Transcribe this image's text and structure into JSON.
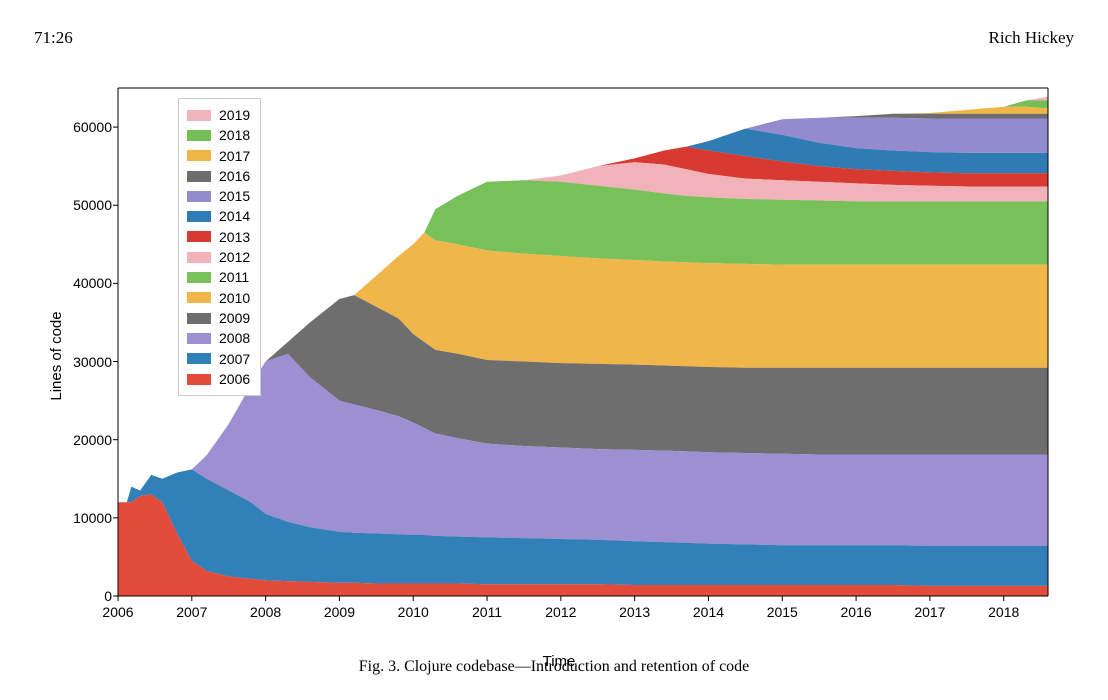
{
  "page_number": "71:26",
  "author": "Rich Hickey",
  "caption": "Fig. 3.  Clojure codebase—Introduction and retention of code",
  "chart": {
    "type": "area-stacked",
    "xlabel": "Time",
    "ylabel": "Lines of code",
    "xlim": [
      2006,
      2018.6
    ],
    "ylim": [
      0,
      65000
    ],
    "yticks": [
      0,
      10000,
      20000,
      30000,
      40000,
      50000,
      60000
    ],
    "xticks": [
      2006,
      2007,
      2008,
      2009,
      2010,
      2011,
      2012,
      2013,
      2014,
      2015,
      2016,
      2017,
      2018
    ],
    "label_fontsize": 15,
    "tick_fontsize": 14,
    "legend_fontsize": 14,
    "background_color": "#ffffff",
    "axis_color": "#000000",
    "font_family_axes": "Helvetica, Arial, sans-serif",
    "legend_order": [
      "2019",
      "2018",
      "2017",
      "2016",
      "2015",
      "2014",
      "2013",
      "2012",
      "2011",
      "2010",
      "2009",
      "2008",
      "2007",
      "2006"
    ],
    "series_colors": {
      "2006": "#e34b3a",
      "2007": "#3180b7",
      "2008": "#9c8fd2",
      "2009": "#6e6e6e",
      "2010": "#f1b64a",
      "2011": "#77c05a",
      "2012": "#f2b2ba",
      "2013": "#d63a31",
      "2014": "#2f7cb5",
      "2015": "#948bcf",
      "2016": "#6d6d6d",
      "2017": "#f0b547",
      "2018": "#74bf55",
      "2019": "#f1b3bc"
    },
    "time_points": [
      2006,
      2006.12,
      2006.18,
      2006.3,
      2006.45,
      2006.6,
      2006.8,
      2007,
      2007.2,
      2007.5,
      2007.8,
      2008,
      2008.3,
      2008.6,
      2009,
      2009.2,
      2009.5,
      2009.8,
      2010,
      2010.15,
      2010.3,
      2010.6,
      2011,
      2011.5,
      2012,
      2012.5,
      2013,
      2013.4,
      2013.7,
      2014,
      2014.5,
      2015,
      2015.5,
      2016,
      2016.5,
      2017,
      2017.5,
      2018,
      2018.3,
      2018.6
    ],
    "cumulative_top": {
      "2006": [
        12000,
        12000,
        12000,
        12800,
        13000,
        12000,
        8000,
        4500,
        3200,
        2500,
        2200,
        2000,
        1900,
        1800,
        1700,
        1700,
        1600,
        1600,
        1600,
        1600,
        1600,
        1600,
        1500,
        1500,
        1500,
        1500,
        1400,
        1400,
        1400,
        1400,
        1400,
        1400,
        1400,
        1400,
        1400,
        1300,
        1300,
        1300,
        1300,
        1300
      ],
      "2007": [
        12000,
        12000,
        14000,
        13500,
        15500,
        15000,
        15800,
        16200,
        15000,
        13500,
        12000,
        10500,
        9500,
        8800,
        8200,
        8100,
        8000,
        7900,
        7800,
        7800,
        7700,
        7600,
        7500,
        7400,
        7300,
        7200,
        7000,
        6900,
        6800,
        6700,
        6600,
        6500,
        6500,
        6500,
        6500,
        6400,
        6400,
        6400,
        6400,
        6400
      ],
      "2008": [
        12000,
        12000,
        14000,
        13500,
        15500,
        15000,
        15800,
        16200,
        18000,
        22000,
        27000,
        30000,
        31000,
        28000,
        25000,
        24500,
        23800,
        23000,
        22200,
        21500,
        20800,
        20200,
        19500,
        19200,
        19000,
        18800,
        18700,
        18600,
        18500,
        18400,
        18300,
        18200,
        18100,
        18100,
        18100,
        18100,
        18100,
        18100,
        18100,
        18100
      ],
      "2009": [
        12000,
        12000,
        14000,
        13500,
        15500,
        15000,
        15800,
        16200,
        18000,
        22000,
        27000,
        30000,
        32500,
        35000,
        38000,
        38500,
        37000,
        35500,
        33500,
        32500,
        31500,
        31000,
        30200,
        30000,
        29800,
        29700,
        29600,
        29500,
        29400,
        29300,
        29200,
        29200,
        29200,
        29200,
        29200,
        29200,
        29200,
        29200,
        29200,
        29200
      ],
      "2010": [
        12000,
        12000,
        14000,
        13500,
        15500,
        15000,
        15800,
        16200,
        18000,
        22000,
        27000,
        30000,
        32500,
        35000,
        38000,
        38500,
        41000,
        43500,
        45000,
        46500,
        45500,
        45000,
        44200,
        43800,
        43500,
        43200,
        43000,
        42800,
        42700,
        42600,
        42500,
        42400,
        42400,
        42400,
        42400,
        42400,
        42400,
        42400,
        42400,
        42400
      ],
      "2011": [
        12000,
        12000,
        14000,
        13500,
        15500,
        15000,
        15800,
        16200,
        18000,
        22000,
        27000,
        30000,
        32500,
        35000,
        38000,
        38500,
        41000,
        43500,
        45000,
        46500,
        49500,
        51200,
        53000,
        53200,
        53000,
        52500,
        52000,
        51500,
        51200,
        51000,
        50800,
        50700,
        50600,
        50500,
        50500,
        50500,
        50500,
        50500,
        50500,
        50500
      ],
      "2012": [
        12000,
        12000,
        14000,
        13500,
        15500,
        15000,
        15800,
        16200,
        18000,
        22000,
        27000,
        30000,
        32500,
        35000,
        38000,
        38500,
        41000,
        43500,
        45000,
        46500,
        49500,
        51200,
        53000,
        53200,
        53800,
        55000,
        55500,
        55200,
        54600,
        54000,
        53400,
        53200,
        53000,
        52800,
        52600,
        52500,
        52400,
        52400,
        52400,
        52400
      ],
      "2013": [
        12000,
        12000,
        14000,
        13500,
        15500,
        15000,
        15800,
        16200,
        18000,
        22000,
        27000,
        30000,
        32500,
        35000,
        38000,
        38500,
        41000,
        43500,
        45000,
        46500,
        49500,
        51200,
        53000,
        53200,
        53800,
        55000,
        56000,
        57000,
        57500,
        57000,
        56300,
        55600,
        55000,
        54600,
        54400,
        54200,
        54100,
        54100,
        54100,
        54100
      ],
      "2014": [
        12000,
        12000,
        14000,
        13500,
        15500,
        15000,
        15800,
        16200,
        18000,
        22000,
        27000,
        30000,
        32500,
        35000,
        38000,
        38500,
        41000,
        43500,
        45000,
        46500,
        49500,
        51200,
        53000,
        53200,
        53800,
        55000,
        56000,
        57000,
        57500,
        58200,
        59800,
        59000,
        58000,
        57300,
        57000,
        56800,
        56700,
        56700,
        56700,
        56700
      ],
      "2015": [
        12000,
        12000,
        14000,
        13500,
        15500,
        15000,
        15800,
        16200,
        18000,
        22000,
        27000,
        30000,
        32500,
        35000,
        38000,
        38500,
        41000,
        43500,
        45000,
        46500,
        49500,
        51200,
        53000,
        53200,
        53800,
        55000,
        56000,
        57000,
        57500,
        58200,
        59800,
        61000,
        61200,
        61200,
        61200,
        61100,
        61100,
        61100,
        61100,
        61100
      ],
      "2016": [
        12000,
        12000,
        14000,
        13500,
        15500,
        15000,
        15800,
        16200,
        18000,
        22000,
        27000,
        30000,
        32500,
        35000,
        38000,
        38500,
        41000,
        43500,
        45000,
        46500,
        49500,
        51200,
        53000,
        53200,
        53800,
        55000,
        56000,
        57000,
        57500,
        58200,
        59800,
        61000,
        61200,
        61400,
        61700,
        61700,
        61700,
        61700,
        61700,
        61700
      ],
      "2017": [
        12000,
        12000,
        14000,
        13500,
        15500,
        15000,
        15800,
        16200,
        18000,
        22000,
        27000,
        30000,
        32500,
        35000,
        38000,
        38500,
        41000,
        43500,
        45000,
        46500,
        49500,
        51200,
        53000,
        53200,
        53800,
        55000,
        56000,
        57000,
        57500,
        58200,
        59800,
        61000,
        61200,
        61400,
        61700,
        61800,
        62200,
        62600,
        62600,
        62400
      ],
      "2018": [
        12000,
        12000,
        14000,
        13500,
        15500,
        15000,
        15800,
        16200,
        18000,
        22000,
        27000,
        30000,
        32500,
        35000,
        38000,
        38500,
        41000,
        43500,
        45000,
        46500,
        49500,
        51200,
        53000,
        53200,
        53800,
        55000,
        56000,
        57000,
        57500,
        58200,
        59800,
        61000,
        61200,
        61400,
        61700,
        61800,
        62200,
        62600,
        63400,
        63400
      ],
      "2019": [
        12000,
        12000,
        14000,
        13500,
        15500,
        15000,
        15800,
        16200,
        18000,
        22000,
        27000,
        30000,
        32500,
        35000,
        38000,
        38500,
        41000,
        43500,
        45000,
        46500,
        49500,
        51200,
        53000,
        53200,
        53800,
        55000,
        56000,
        57000,
        57500,
        58200,
        59800,
        61000,
        61200,
        61400,
        61700,
        61800,
        62200,
        62600,
        63400,
        63900
      ]
    },
    "stack_order_bottom_up": [
      "2006",
      "2007",
      "2008",
      "2009",
      "2010",
      "2011",
      "2012",
      "2013",
      "2014",
      "2015",
      "2016",
      "2017",
      "2018",
      "2019"
    ]
  }
}
